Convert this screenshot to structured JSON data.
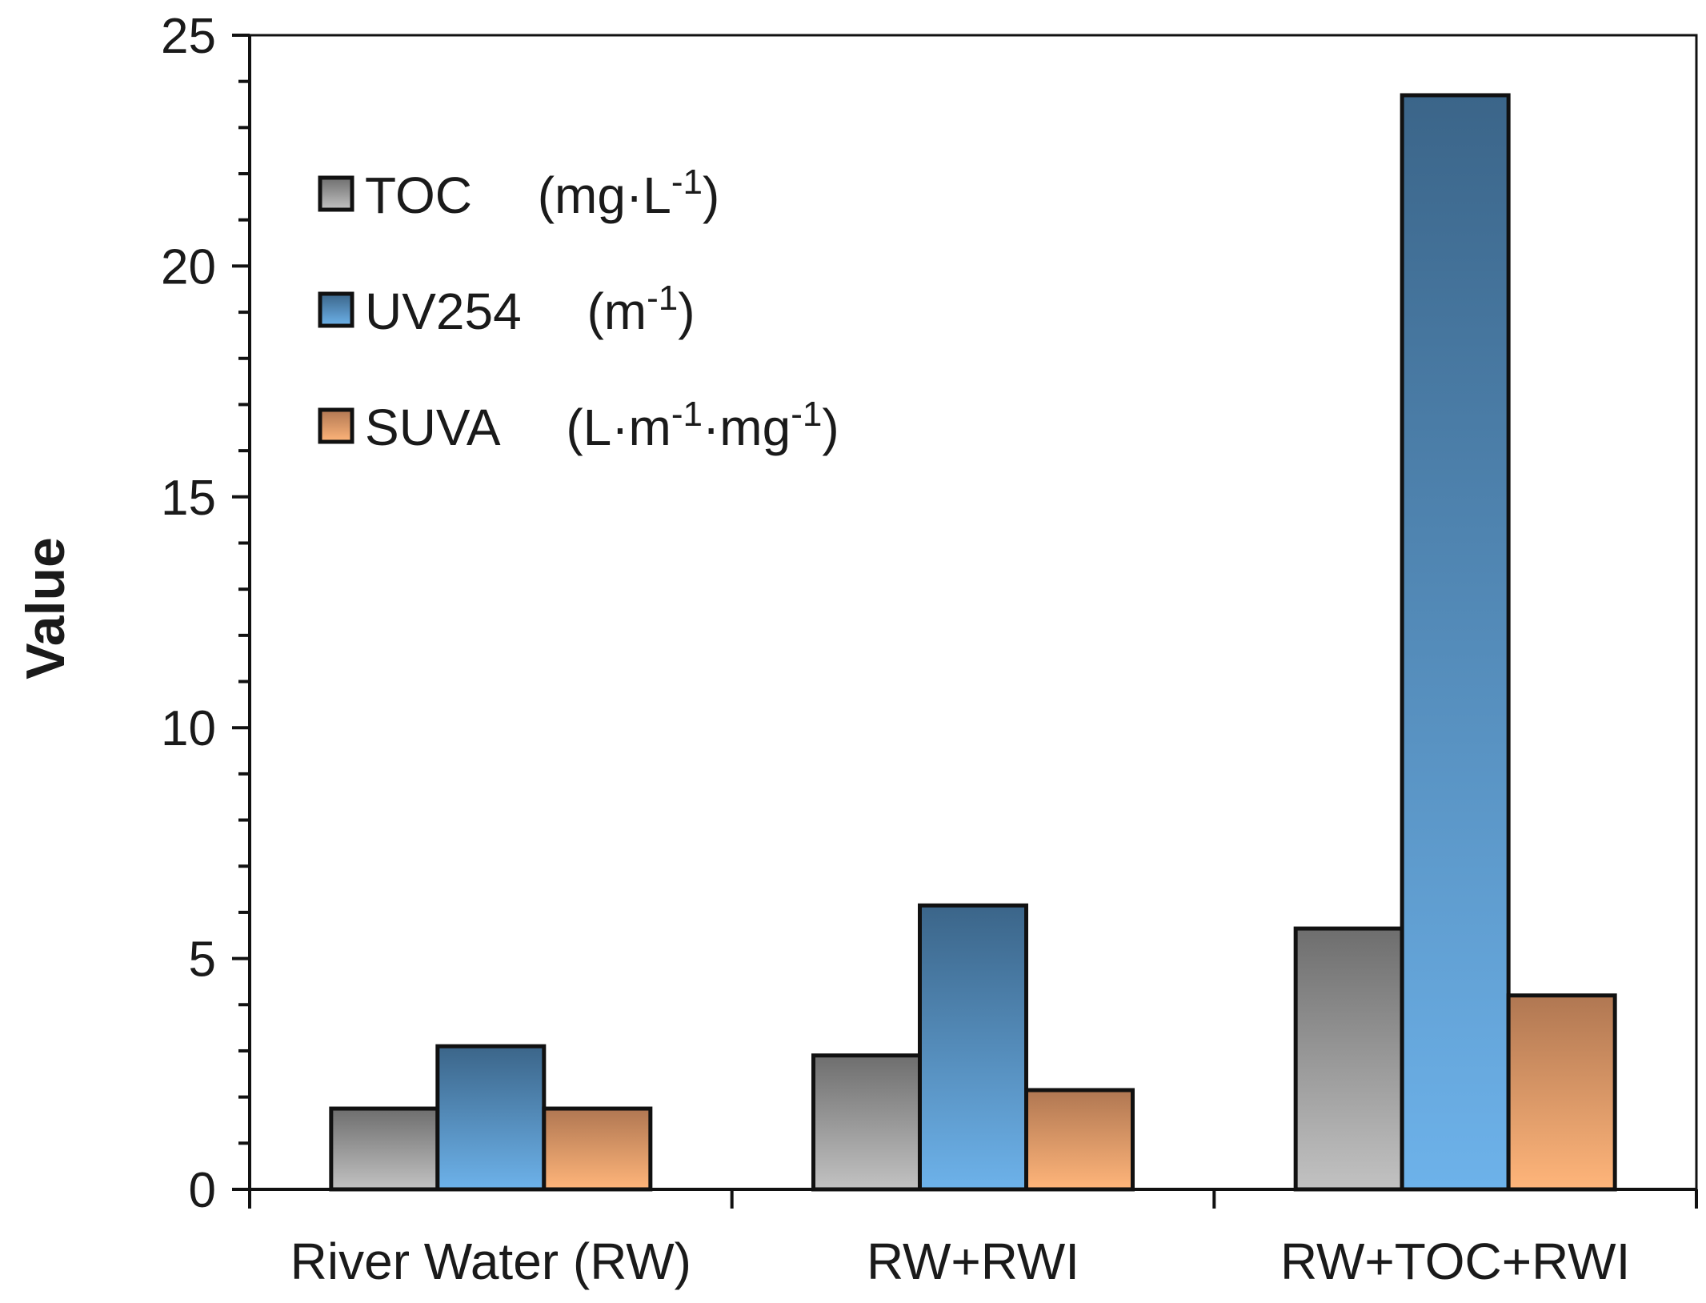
{
  "chart_data": {
    "type": "bar",
    "title": "",
    "xlabel": "",
    "ylabel": "Value",
    "ylim": [
      0,
      25
    ],
    "yticks": [
      0,
      5,
      10,
      15,
      20,
      25
    ],
    "grid": false,
    "legend_position": "top-left",
    "categories": [
      "River Water (RW)",
      "RW+RWI",
      "RW+TOC+RWI"
    ],
    "series": [
      {
        "name": "TOC",
        "unit_base": "(mg·L",
        "unit_sup": "-1",
        "unit_tail": ")",
        "values": [
          1.75,
          2.9,
          5.65
        ],
        "color_top": "#6e6e6e",
        "color_bottom": "#c2c2c2"
      },
      {
        "name": "UV254",
        "unit_base": "(m",
        "unit_sup": "-1",
        "unit_tail": ")",
        "values": [
          3.1,
          6.15,
          23.7
        ],
        "color_top": "#3b6589",
        "color_bottom": "#6db2ea"
      },
      {
        "name": "SUVA",
        "unit_base": "(L·m",
        "unit_sup": "-1",
        "unit_mid": "·mg",
        "unit_sup2": "-1",
        "unit_tail": ")",
        "values": [
          1.75,
          2.15,
          4.2
        ],
        "color_top": "#b07752",
        "color_bottom": "#ffb57a"
      }
    ]
  }
}
